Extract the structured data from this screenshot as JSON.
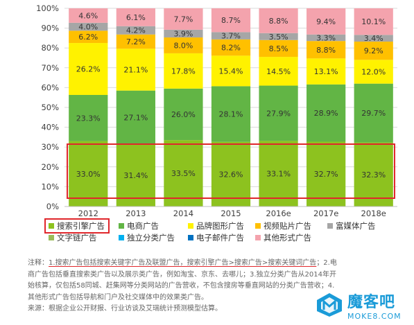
{
  "chart_data": {
    "type": "bar",
    "stacked": true,
    "normalized": true,
    "categories": [
      "2012",
      "2013",
      "2014",
      "2015",
      "2016e",
      "2017e",
      "2018e"
    ],
    "series": [
      {
        "name": "搜索引擎广告",
        "color": "#8dc21f",
        "values": [
          33.0,
          31.4,
          33.5,
          32.6,
          33.1,
          32.7,
          32.3
        ]
      },
      {
        "name": "电商广告",
        "color": "#62b545",
        "values": [
          23.3,
          27.1,
          26.0,
          28.1,
          27.9,
          28.9,
          29.7
        ]
      },
      {
        "name": "品牌图形广告",
        "color": "#fff200",
        "values": [
          26.2,
          21.1,
          17.8,
          15.4,
          14.5,
          13.1,
          12.0
        ]
      },
      {
        "name": "视频贴片广告",
        "color": "#ffc000",
        "values": [
          6.2,
          7.2,
          8.0,
          8.2,
          8.5,
          8.8,
          9.2
        ]
      },
      {
        "name": "富媒体广告",
        "color": "#a6a6a6",
        "values": [
          4.0,
          4.2,
          3.9,
          3.7,
          3.5,
          3.3,
          3.4
        ]
      },
      {
        "name": "文字链广告",
        "color": "#9bbb59",
        "values": [
          null,
          null,
          null,
          null,
          null,
          null,
          null
        ]
      },
      {
        "name": "独立分类广告",
        "color": "#00b0f0",
        "values": [
          null,
          null,
          null,
          null,
          null,
          null,
          null
        ]
      },
      {
        "name": "电子邮件广告",
        "color": "#0070c0",
        "values": [
          null,
          null,
          null,
          null,
          null,
          null,
          null
        ]
      },
      {
        "name": "其他形式广告",
        "color": "#f4a3ad",
        "values": [
          4.6,
          6.1,
          7.7,
          8.7,
          8.8,
          9.4,
          10.1
        ]
      }
    ],
    "yticks": [
      "0%",
      "10%",
      "20%",
      "30%",
      "40%",
      "50%",
      "60%",
      "70%",
      "80%",
      "90%",
      "100%"
    ],
    "ylim": [
      0,
      100
    ],
    "data_labels": [
      [
        "33.0%",
        "23.3%",
        "26.2%",
        "6.2%",
        "4.0%",
        "4.6%"
      ],
      [
        "31.4%",
        "27.1%",
        "21.1%",
        "7.2%",
        "4.2%",
        "6.1%"
      ],
      [
        "33.5%",
        "26.0%",
        "17.8%",
        "8.0%",
        "3.9%",
        "7.7%"
      ],
      [
        "32.6%",
        "28.1%",
        "15.4%",
        "8.2%",
        "3.7%",
        "8.7%"
      ],
      [
        "33.1%",
        "27.9%",
        "14.5%",
        "8.5%",
        "3.5%",
        "8.8%"
      ],
      [
        "32.7%",
        "28.9%",
        "13.1%",
        "8.8%",
        "3.3%",
        "9.4%"
      ],
      [
        "32.3%",
        "29.7%",
        "12.0%",
        "9.2%",
        "3.4%",
        "10.1%"
      ]
    ],
    "legend_position": "bottom",
    "highlight": {
      "series": "搜索引擎广告",
      "color": "#e0262b"
    }
  },
  "legend": {
    "row1": [
      "搜索引擎广告",
      "电商广告",
      "品牌图形广告",
      "视频贴片广告",
      "富媒体广告"
    ],
    "row2": [
      "文字链广告",
      "独立分类广告",
      "电子邮件广告",
      "其他形式广告"
    ]
  },
  "notes": {
    "line1_prefix": "注释：",
    "line1_highlight": "1.搜索广告包括搜索关键字广告及联盟广告，搜索引擎广告>搜索广告>搜索关键词广告",
    "line1_suffix": "；2.电",
    "line2": "商广告包括垂直搜索类广告以及展示类广告，例如淘宝、京东、去哪儿；3.独立分类广告从2014年开",
    "line3": "始核算，仅包括58同城、赶集网等分类网站的广告营收，不包含搜房等垂直网站的分类广告营收；4.",
    "line4": "其他形式广告包括导航和门户及社交媒体中的效果类广告。",
    "source": "来源：根据企业公开财报、行业访谈及艾瑞统计预测模型估算。"
  },
  "watermark": {
    "title": "魔客吧",
    "subtitle": "MOKE8.COM"
  }
}
